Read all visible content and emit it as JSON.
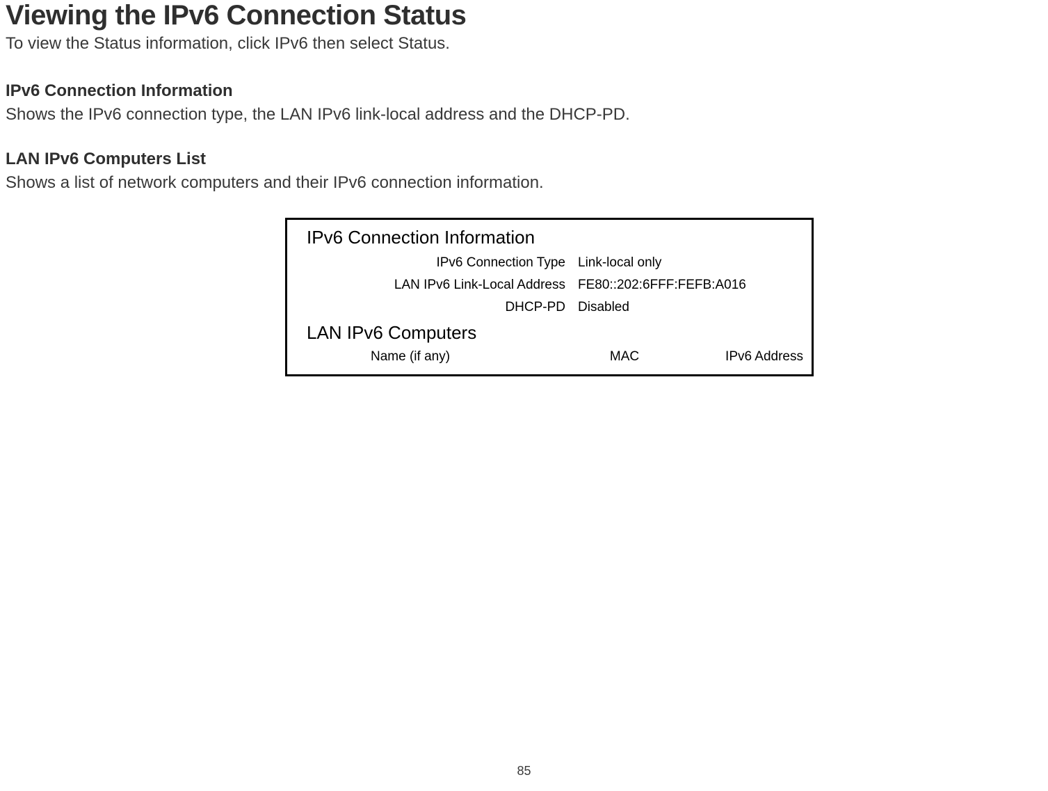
{
  "title": "Viewing the IPv6 Connection Status",
  "intro": "To view the Status information, click IPv6 then select Status.",
  "sections": [
    {
      "heading": "IPv6 Connection Information",
      "desc": "Shows the IPv6 connection type, the LAN IPv6 link-local address and the DHCP-PD."
    },
    {
      "heading": "LAN IPv6 Computers List",
      "desc": "Shows a list of network computers and their IPv6 connection information."
    }
  ],
  "box": {
    "section1_title": "IPv6 Connection Information",
    "rows": [
      {
        "label": "IPv6 Connection Type",
        "value": "Link-local only"
      },
      {
        "label": "LAN IPv6 Link-Local Address",
        "value": "FE80::202:6FFF:FEFB:A016"
      },
      {
        "label": "DHCP-PD",
        "value": "Disabled"
      }
    ],
    "section2_title": "LAN IPv6 Computers",
    "columns": {
      "name": "Name (if any)",
      "mac": "MAC",
      "ipv6": "IPv6 Address"
    }
  },
  "page_number": "85"
}
